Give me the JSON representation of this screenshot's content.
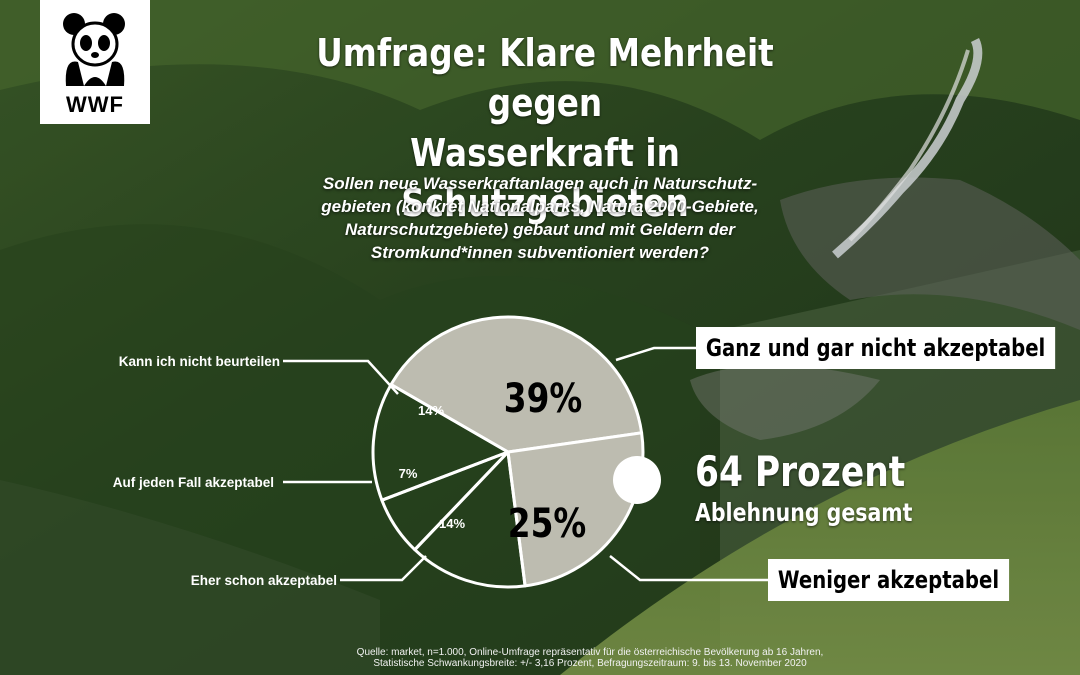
{
  "header": {
    "logo_text": "WWF",
    "title_line1": "Umfrage: Klare Mehrheit gegen",
    "title_line2": "Wasserkraft in Schutzgebieten"
  },
  "question": {
    "line1": "Sollen neue Wasserkraftanlagen auch in Naturschutz-",
    "line2": "gebieten (konkret Nationalparks, Natura 2000-Gebiete,",
    "line3": "Naturschutzgebiete) gebaut und mit Geldern der",
    "line4": "Stromkund*innen subventioniert werden?"
  },
  "chart_data": {
    "type": "pie",
    "slices": [
      {
        "label": "Ganz und gar nicht akzeptabel",
        "value": 39,
        "value_label": "39%",
        "fill": "#c9c6bb"
      },
      {
        "label": "Weniger akzeptabel",
        "value": 25,
        "value_label": "25%",
        "fill": "#c9c6bb"
      },
      {
        "label": "Eher schon akzeptabel",
        "value": 14,
        "value_label": "14%",
        "fill": "transparent"
      },
      {
        "label": "Auf jeden Fall akzeptabel",
        "value": 7,
        "value_label": "7%",
        "fill": "transparent"
      },
      {
        "label": "Kann ich nicht beurteilen",
        "value": 14,
        "value_label": "14%",
        "fill": "transparent"
      }
    ],
    "total_value": "64 Prozent",
    "total_label": "Ablehnung gesamt"
  },
  "source": {
    "line1": "Quelle: market, n=1.000, Online-Umfrage repräsentativ für die österreichische Bevölkerung ab 16 Jahren,",
    "line2": "Statistische Schwankungsbreite: +/- 3,16 Prozent, Befragungszeitraum: 9. bis 13. November 2020"
  },
  "colors": {
    "highlight_slice": "#c9c6bb",
    "outline": "#ffffff",
    "text": "#ffffff"
  }
}
